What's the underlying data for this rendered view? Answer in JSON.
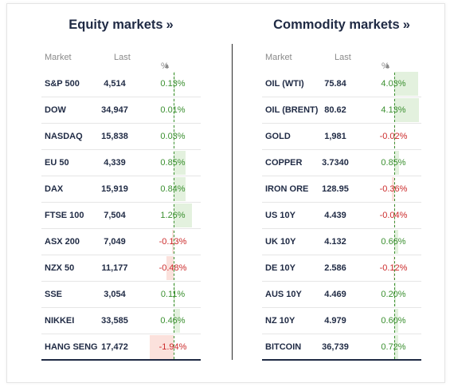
{
  "equity": {
    "title": "Equity markets",
    "title_arrow": "»",
    "headers": {
      "market": "Market",
      "last": "Last",
      "pct": "%"
    },
    "rows": [
      {
        "market": "S&P 500",
        "last": "4,514",
        "pct": "0.13%",
        "value": 0.13
      },
      {
        "market": "DOW",
        "last": "34,947",
        "pct": "0.01%",
        "value": 0.01
      },
      {
        "market": "NASDAQ",
        "last": "15,838",
        "pct": "0.03%",
        "value": 0.03
      },
      {
        "market": "EU 50",
        "last": "4,339",
        "pct": "0.85%",
        "value": 0.85
      },
      {
        "market": "DAX",
        "last": "15,919",
        "pct": "0.84%",
        "value": 0.84
      },
      {
        "market": "FTSE 100",
        "last": "7,504",
        "pct": "1.26%",
        "value": 1.26
      },
      {
        "market": "ASX 200",
        "last": "7,049",
        "pct": "-0.13%",
        "value": -0.13
      },
      {
        "market": "NZX 50",
        "last": "11,177",
        "pct": "-0.48%",
        "value": -0.48
      },
      {
        "market": "SSE",
        "last": "3,054",
        "pct": "0.11%",
        "value": 0.11
      },
      {
        "market": "NIKKEI",
        "last": "33,585",
        "pct": "0.46%",
        "value": 0.46
      },
      {
        "market": "HANG SENG",
        "last": "17,472",
        "pct": "-1.94%",
        "value": -1.94
      }
    ]
  },
  "commodity": {
    "title": "Commodity markets",
    "title_arrow": "»",
    "headers": {
      "market": "Market",
      "last": "Last",
      "pct": "%"
    },
    "rows": [
      {
        "market": "OIL (WTI)",
        "last": "75.84",
        "pct": "4.03%",
        "value": 4.03
      },
      {
        "market": "OIL (BRENT)",
        "last": "80.62",
        "pct": "4.13%",
        "value": 4.13
      },
      {
        "market": "GOLD",
        "last": "1,981",
        "pct": "-0.02%",
        "value": -0.02
      },
      {
        "market": "COPPER",
        "last": "3.7340",
        "pct": "0.85%",
        "value": 0.85
      },
      {
        "market": "IRON ORE",
        "last": "128.95",
        "pct": "-0.36%",
        "value": -0.36
      },
      {
        "market": "US 10Y",
        "last": "4.439",
        "pct": "-0.04%",
        "value": -0.04
      },
      {
        "market": "UK 10Y",
        "last": "4.132",
        "pct": "0.66%",
        "value": 0.66
      },
      {
        "market": "DE 10Y",
        "last": "2.586",
        "pct": "-0.12%",
        "value": -0.12
      },
      {
        "market": "AUS 10Y",
        "last": "4.469",
        "pct": "0.20%",
        "value": 0.2
      },
      {
        "market": "NZ 10Y",
        "last": "4.979",
        "pct": "0.60%",
        "value": 0.6
      },
      {
        "market": "BITCOIN",
        "last": "36,739",
        "pct": "0.72%",
        "value": 0.72
      }
    ]
  },
  "colors": {
    "positive_text": "#3a8f2f",
    "negative_text": "#cc2b2b",
    "positive_bar": "#e3f1de",
    "negative_bar": "#fbe1dc",
    "heading": "#1f2a44"
  },
  "icons": {
    "sort": "sort-ascending-triangle"
  }
}
